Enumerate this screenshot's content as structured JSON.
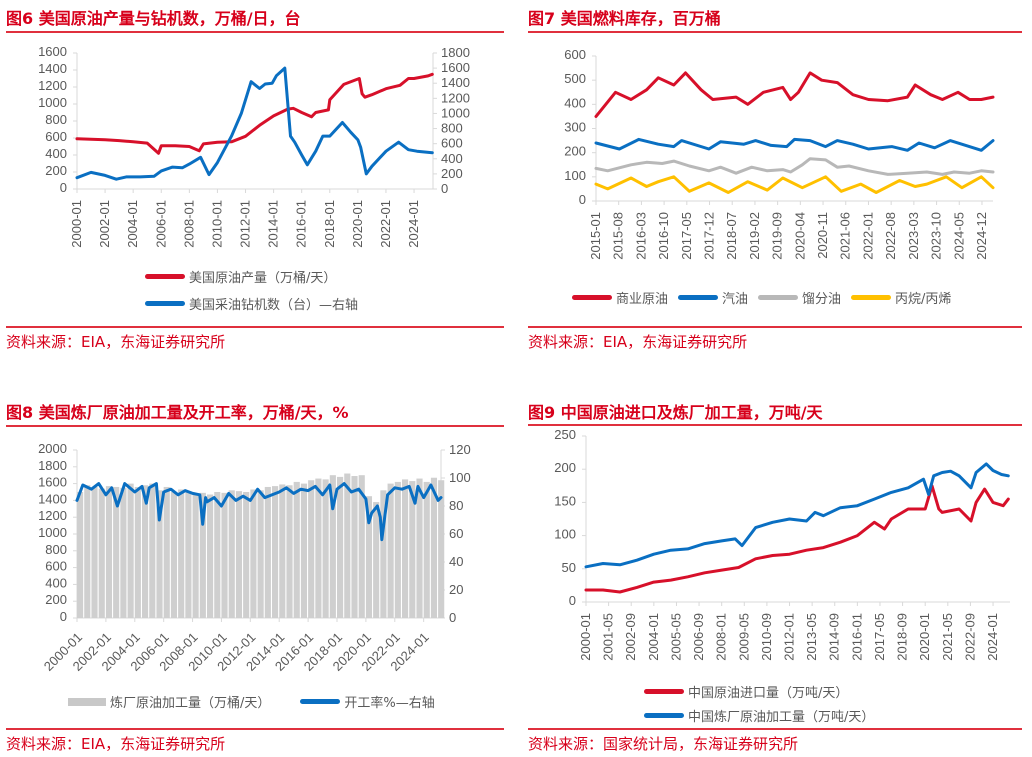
{
  "colors": {
    "red": "#d7102a",
    "blue": "#0a6fc2",
    "gray": "#b8b8b8",
    "yellow": "#ffc000",
    "bar": "#cfcfcf",
    "accent": "#d7001b"
  },
  "charts": [
    {
      "title": "图6  美国原油产量与钻机数，万桶/日，台",
      "source": "资料来源：EIA，东海证券研究所",
      "chart_data": {
        "type": "line",
        "x_ticks": [
          "2000-01",
          "2002-01",
          "2004-01",
          "2006-01",
          "2008-01",
          "2010-01",
          "2012-01",
          "2014-01",
          "2016-01",
          "2018-01",
          "2020-01",
          "2022-01",
          "2024-01"
        ],
        "y_left": {
          "range": [
            0,
            1600
          ],
          "ticks": [
            "0",
            "200",
            "400",
            "600",
            "800",
            "1000",
            "1200",
            "1400",
            "1600"
          ]
        },
        "y_right": {
          "range": [
            0,
            1800
          ],
          "ticks": [
            "0",
            "200",
            "400",
            "600",
            "800",
            "1000",
            "1200",
            "1400",
            "1600",
            "1800"
          ]
        },
        "xlim": [
          2000,
          2025.35
        ],
        "series": [
          {
            "name": "美国原油产量（万桶/天）",
            "color": "red",
            "axis": "left",
            "x": [
              2000,
              2001,
              2002,
              2003,
              2004,
              2005,
              2005.8,
              2006,
              2007,
              2008,
              2008.7,
              2009,
              2010,
              2011,
              2012,
              2013,
              2014,
              2015,
              2015.4,
              2016,
              2016.7,
              2017,
              2017.9,
              2018,
              2019,
              2020.1,
              2020.3,
              2020.5,
              2021,
              2022,
              2023,
              2023.6,
              2024,
              2025,
              2025.3
            ],
            "y": [
              590,
              585,
              580,
              570,
              555,
              540,
              420,
              510,
              510,
              500,
              450,
              530,
              550,
              555,
              620,
              750,
              860,
              940,
              950,
              900,
              850,
              900,
              930,
              1050,
              1230,
              1300,
              1120,
              1080,
              1110,
              1180,
              1220,
              1300,
              1300,
              1330,
              1350
            ]
          },
          {
            "name": "美国采油钻机数（台）—右轴",
            "color": "blue",
            "axis": "right",
            "x": [
              2000,
              2001,
              2002,
              2002.8,
              2003.5,
              2004.5,
              2005.5,
              2006,
              2006.8,
              2007.5,
              2008,
              2008.8,
              2009.4,
              2010,
              2011,
              2011.7,
              2012.4,
              2013,
              2013.4,
              2013.9,
              2014.2,
              2014.8,
              2015.2,
              2015.5,
              2016,
              2016.4,
              2017,
              2017.5,
              2018,
              2018.9,
              2019.5,
              2020,
              2020.2,
              2020.6,
              2021,
              2022,
              2022.9,
              2023.6,
              2024.2,
              2025.3
            ],
            "y": [
              150,
              220,
              180,
              130,
              160,
              160,
              170,
              240,
              290,
              280,
              330,
              420,
              190,
              350,
              700,
              1000,
              1420,
              1330,
              1390,
              1400,
              1500,
              1600,
              700,
              620,
              450,
              320,
              500,
              700,
              700,
              880,
              750,
              650,
              550,
              200,
              300,
              500,
              620,
              520,
              500,
              480
            ]
          }
        ]
      }
    },
    {
      "title": "图7  美国燃料库存，百万桶",
      "source": "资料来源：EIA，东海证券研究所",
      "chart_data": {
        "type": "line",
        "x_ticks": [
          "2015-01",
          "2015-08",
          "2016-03",
          "2016-10",
          "2017-05",
          "2017-12",
          "2018-07",
          "2019-02",
          "2019-09",
          "2020-04",
          "2020-11",
          "2021-06",
          "2022-01",
          "2022-08",
          "2023-03",
          "2023-10",
          "2024-05",
          "2024-12"
        ],
        "y_left": {
          "range": [
            0,
            600
          ],
          "ticks": [
            "0",
            "100",
            "200",
            "300",
            "400",
            "500",
            "600"
          ]
        },
        "xlim": [
          2015,
          2025.2
        ],
        "series": [
          {
            "name": "商业原油",
            "color": "red",
            "axis": "left",
            "x": [
              2015,
              2015.5,
              2015.9,
              2016.3,
              2016.6,
              2017,
              2017.3,
              2017.7,
              2018,
              2018.6,
              2018.9,
              2019.3,
              2019.8,
              2020,
              2020.2,
              2020.5,
              2020.8,
              2021.2,
              2021.6,
              2022,
              2022.5,
              2023,
              2023.2,
              2023.6,
              2023.9,
              2024.3,
              2024.6,
              2024.9,
              2025.2
            ],
            "y": [
              350,
              450,
              420,
              460,
              510,
              480,
              530,
              460,
              420,
              430,
              400,
              450,
              470,
              420,
              450,
              530,
              500,
              490,
              440,
              420,
              415,
              430,
              480,
              440,
              420,
              450,
              420,
              420,
              430
            ]
          },
          {
            "name": "汽油",
            "color": "blue",
            "axis": "left",
            "x": [
              2015,
              2015.6,
              2016.1,
              2016.6,
              2017,
              2017.2,
              2017.9,
              2018.2,
              2018.8,
              2019.1,
              2019.5,
              2019.9,
              2020.1,
              2020.5,
              2020.9,
              2021.2,
              2021.6,
              2022,
              2022.6,
              2023,
              2023.3,
              2023.7,
              2024.1,
              2024.5,
              2024.9,
              2025.2
            ],
            "y": [
              240,
              215,
              255,
              235,
              225,
              250,
              215,
              245,
              235,
              250,
              230,
              225,
              255,
              250,
              225,
              250,
              235,
              215,
              225,
              210,
              240,
              220,
              250,
              230,
              210,
              250
            ]
          },
          {
            "name": "馏分油",
            "color": "gray",
            "axis": "left",
            "x": [
              2015,
              2015.3,
              2015.9,
              2016.3,
              2016.7,
              2017,
              2017.4,
              2017.9,
              2018.2,
              2018.6,
              2019,
              2019.4,
              2019.8,
              2020,
              2020.3,
              2020.5,
              2020.9,
              2021.2,
              2021.5,
              2022,
              2022.5,
              2023,
              2023.5,
              2023.9,
              2024.2,
              2024.6,
              2024.9,
              2025.2
            ],
            "y": [
              135,
              125,
              150,
              160,
              155,
              165,
              145,
              125,
              140,
              115,
              140,
              125,
              130,
              120,
              150,
              175,
              170,
              140,
              145,
              125,
              110,
              115,
              120,
              110,
              120,
              115,
              125,
              120
            ]
          },
          {
            "name": "丙烷/丙烯",
            "color": "yellow",
            "axis": "left",
            "x": [
              2015,
              2015.3,
              2015.9,
              2016.3,
              2016.6,
              2017,
              2017.4,
              2017.9,
              2018.4,
              2018.9,
              2019.4,
              2019.8,
              2020.3,
              2020.9,
              2021.3,
              2021.8,
              2022.2,
              2022.8,
              2023.2,
              2023.5,
              2024,
              2024.4,
              2024.9,
              2025.2
            ],
            "y": [
              70,
              50,
              95,
              60,
              80,
              100,
              40,
              75,
              35,
              80,
              45,
              95,
              55,
              100,
              40,
              70,
              35,
              85,
              60,
              70,
              100,
              55,
              100,
              55
            ]
          }
        ]
      }
    },
    {
      "title": "图8  美国炼厂原油加工量及开工率，万桶/天，%",
      "source": "资料来源：EIA，东海证券研究所",
      "chart_data": {
        "type": "bar+line",
        "x_ticks": [
          "2000-01",
          "2002-01",
          "2004-01",
          "2006-01",
          "2008-01",
          "2010-01",
          "2012-01",
          "2014-01",
          "2016-01",
          "2018-01",
          "2020-01",
          "2022-01",
          "2024-01"
        ],
        "y_left": {
          "range": [
            0,
            2000
          ],
          "ticks": [
            "0",
            "200",
            "400",
            "600",
            "800",
            "1000",
            "1200",
            "1400",
            "1600",
            "1800",
            "2000"
          ]
        },
        "y_right": {
          "range": [
            0,
            120
          ],
          "ticks": [
            "0",
            "20",
            "40",
            "60",
            "80",
            "100",
            "120"
          ]
        },
        "xlim": [
          2000,
          2025.2
        ],
        "bars": {
          "name": "炼厂原油加工量（万桶/天）",
          "color": "bar",
          "axis": "left",
          "x_start": 2000,
          "step": 0.5,
          "values": [
            1500,
            1580,
            1560,
            1540,
            1570,
            1560,
            1550,
            1600,
            1560,
            1580,
            1600,
            1520,
            1560,
            1500,
            1530,
            1510,
            1480,
            1490,
            1470,
            1500,
            1490,
            1520,
            1510,
            1500,
            1530,
            1520,
            1560,
            1570,
            1590,
            1580,
            1620,
            1600,
            1640,
            1660,
            1650,
            1700,
            1680,
            1720,
            1690,
            1700,
            1450,
            1380,
            1520,
            1600,
            1620,
            1650,
            1630,
            1660,
            1620,
            1670,
            1640
          ]
        },
        "series": [
          {
            "name": "开工率%—右轴",
            "color": "blue",
            "axis": "right",
            "x": [
              2000,
              2000.4,
              2001,
              2001.5,
              2002,
              2002.4,
              2002.8,
              2003.3,
              2004,
              2004.5,
              2004.8,
              2005,
              2005.5,
              2005.7,
              2006,
              2006.5,
              2007,
              2007.5,
              2008,
              2008.5,
              2008.7,
              2008.9,
              2009,
              2009.5,
              2010,
              2010.5,
              2011,
              2011.5,
              2012,
              2012.5,
              2013,
              2014,
              2014.5,
              2015,
              2015.5,
              2016,
              2016.5,
              2017,
              2017.5,
              2017.7,
              2018,
              2018.5,
              2019,
              2019.5,
              2020,
              2020.2,
              2020.4,
              2020.8,
              2021,
              2021.1,
              2021.5,
              2022,
              2022.5,
              2023,
              2023.4,
              2023.6,
              2024,
              2024.5,
              2025,
              2025.2
            ],
            "y": [
              84,
              95,
              92,
              96,
              88,
              93,
              80,
              96,
              90,
              94,
              82,
              93,
              96,
              70,
              90,
              92,
              88,
              91,
              89,
              88,
              67,
              86,
              83,
              86,
              80,
              89,
              84,
              87,
              84,
              92,
              86,
              90,
              93,
              89,
              92,
              91,
              94,
              88,
              95,
              78,
              92,
              96,
              90,
              92,
              85,
              68,
              75,
              80,
              72,
              56,
              88,
              93,
              92,
              94,
              82,
              94,
              86,
              95,
              84,
              86
            ]
          }
        ]
      }
    },
    {
      "title": "图9  中国原油进口及炼厂加工量，万吨/天",
      "source": "资料来源：国家统计局，东海证券研究所",
      "chart_data": {
        "type": "line",
        "x_ticks": [
          "2000-01",
          "2001-05",
          "2002-09",
          "2004-01",
          "2005-05",
          "2006-09",
          "2008-01",
          "2009-05",
          "2010-09",
          "2012-01",
          "2013-05",
          "2014-09",
          "2016-01",
          "2017-05",
          "2018-09",
          "2020-01",
          "2021-05",
          "2022-09",
          "2024-01"
        ],
        "y_left": {
          "range": [
            0,
            250
          ],
          "ticks": [
            "0",
            "50",
            "100",
            "150",
            "200",
            "250"
          ]
        },
        "xlim": [
          2000,
          2025
        ],
        "series": [
          {
            "name": "中国原油进口量（万吨/天）",
            "color": "red",
            "axis": "left",
            "x": [
              2000,
              2001,
              2002,
              2003,
              2004,
              2005,
              2006,
              2007,
              2008,
              2009,
              2010,
              2011,
              2012,
              2013,
              2014,
              2015,
              2016,
              2017,
              2017.6,
              2018,
              2019,
              2020,
              2020.4,
              2020.8,
              2021,
              2022,
              2022.7,
              2023,
              2023.5,
              2024,
              2024.6,
              2024.9
            ],
            "y": [
              18,
              18,
              15,
              22,
              30,
              33,
              38,
              44,
              48,
              52,
              65,
              70,
              72,
              78,
              82,
              90,
              100,
              120,
              110,
              125,
              140,
              140,
              175,
              140,
              135,
              140,
              122,
              150,
              170,
              150,
              145,
              155
            ]
          },
          {
            "name": "中国炼厂原油加工量（万吨/天）",
            "color": "blue",
            "axis": "left",
            "x": [
              2000,
              2001,
              2002,
              2003,
              2004,
              2005,
              2006,
              2007,
              2008,
              2008.8,
              2009.2,
              2010,
              2011,
              2012,
              2013,
              2013.5,
              2014,
              2015,
              2016,
              2017,
              2018,
              2019,
              2019.9,
              2020.2,
              2020.5,
              2021,
              2021.5,
              2022,
              2022.7,
              2023,
              2023.6,
              2024,
              2024.5,
              2024.9
            ],
            "y": [
              53,
              58,
              56,
              63,
              72,
              78,
              80,
              88,
              92,
              95,
              85,
              112,
              120,
              125,
              122,
              135,
              130,
              142,
              145,
              155,
              165,
              172,
              185,
              162,
              190,
              195,
              197,
              190,
              172,
              195,
              208,
              198,
              192,
              190
            ]
          }
        ]
      }
    }
  ]
}
